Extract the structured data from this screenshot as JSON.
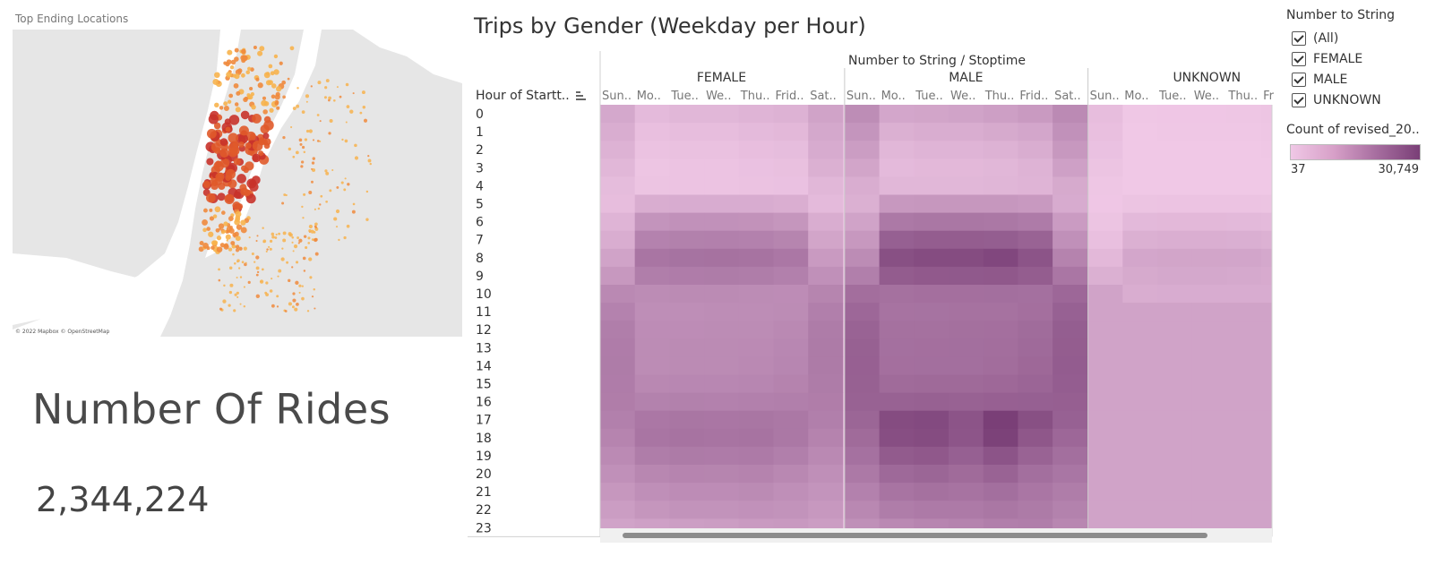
{
  "map": {
    "title": "Top Ending Locations",
    "credit": "© 2022 Mapbox © OpenStreetMap",
    "land_color": "#e9e9e9",
    "water_color": "#ffffff",
    "dot_colors": [
      "#f7b24c",
      "#f08a3c",
      "#e05a2a",
      "#c8322a"
    ]
  },
  "kpi": {
    "label": "Number Of Rides",
    "value": "2,344,224"
  },
  "heatmap": {
    "title": "Trips by Gender (Weekday per Hour)",
    "column_header": "Number to String / Stoptime",
    "row_header": "Hour of Startt..",
    "sort_icon": "sort-descending-icon",
    "groups": [
      "FEMALE",
      "MALE",
      "UNKNOWN"
    ],
    "day_labels": [
      "Sun..",
      "Mo..",
      "Tue..",
      "We..",
      "Thu..",
      "Frid..",
      "Sat.."
    ],
    "unknown_day_labels": [
      "Sun..",
      "Mo..",
      "Tue..",
      "We..",
      "Thu..",
      "Fr"
    ],
    "hours": [
      "0",
      "1",
      "2",
      "3",
      "4",
      "5",
      "6",
      "7",
      "8",
      "9",
      "10",
      "11",
      "12",
      "13",
      "14",
      "15",
      "16",
      "17",
      "18",
      "19",
      "20",
      "21",
      "22",
      "23"
    ],
    "color_low": "#f0c8e6",
    "color_high": "#7a3f77"
  },
  "legend": {
    "filter_title": "Number to String",
    "filter_items": [
      "(All)",
      "FEMALE",
      "MALE",
      "UNKNOWN"
    ],
    "color_title": "Count of revised_20..",
    "min_label": "37",
    "max_label": "30,749"
  },
  "chart_data": {
    "type": "heatmap",
    "title": "Trips by Gender (Weekday per Hour)",
    "xlabel": "Number to String / Stoptime",
    "ylabel": "Hour of Startt..",
    "series_names": [
      "FEMALE",
      "MALE",
      "UNKNOWN"
    ],
    "x": [
      "Sun..",
      "Mo..",
      "Tue..",
      "We..",
      "Thu..",
      "Frid..",
      "Sat.."
    ],
    "y": [
      "0",
      "1",
      "2",
      "3",
      "4",
      "5",
      "6",
      "7",
      "8",
      "9",
      "10",
      "11",
      "12",
      "13",
      "14",
      "15",
      "16",
      "17",
      "18",
      "19",
      "20",
      "21",
      "22",
      "23"
    ],
    "color_range": [
      37,
      30749
    ],
    "values": {
      "FEMALE": [
        [
          1200,
          400,
          500,
          500,
          600,
          700,
          1500
        ],
        [
          900,
          250,
          300,
          300,
          400,
          450,
          1200
        ],
        [
          700,
          180,
          220,
          220,
          280,
          320,
          1000
        ],
        [
          500,
          130,
          160,
          160,
          200,
          240,
          800
        ],
        [
          350,
          150,
          160,
          160,
          180,
          200,
          500
        ],
        [
          300,
          900,
          950,
          950,
          950,
          850,
          400
        ],
        [
          600,
          2800,
          3100,
          3100,
          3000,
          2600,
          900
        ],
        [
          900,
          5200,
          5500,
          5600,
          5400,
          4800,
          1400
        ],
        [
          1500,
          7800,
          8400,
          8500,
          8200,
          7300,
          2200
        ],
        [
          2400,
          6000,
          6300,
          6400,
          6200,
          5600,
          3200
        ],
        [
          4200,
          3800,
          3900,
          3900,
          3800,
          3700,
          4800
        ],
        [
          5200,
          3500,
          3500,
          3600,
          3600,
          3800,
          5800
        ],
        [
          6000,
          3700,
          3700,
          3800,
          3800,
          4100,
          6400
        ],
        [
          6300,
          3800,
          3900,
          3900,
          4000,
          4400,
          6600
        ],
        [
          6400,
          3800,
          3900,
          3900,
          4100,
          4600,
          6600
        ],
        [
          6300,
          4300,
          4400,
          4400,
          4600,
          5000,
          6400
        ],
        [
          6100,
          5300,
          5500,
          5400,
          5600,
          5800,
          6100
        ],
        [
          5600,
          7300,
          7700,
          7500,
          7700,
          7200,
          5800
        ],
        [
          4900,
          7800,
          8200,
          8000,
          8300,
          7200,
          5000
        ],
        [
          4000,
          6200,
          6600,
          6500,
          6700,
          5800,
          4200
        ],
        [
          3200,
          4500,
          4900,
          4800,
          5000,
          4300,
          3400
        ],
        [
          2500,
          3400,
          3700,
          3700,
          3900,
          3400,
          2800
        ],
        [
          2000,
          2600,
          2900,
          2900,
          3100,
          2900,
          2400
        ],
        [
          1500,
          1700,
          1900,
          2000,
          2200,
          2300,
          2000
        ]
      ],
      "MALE": [
        [
          3600,
          1300,
          1400,
          1500,
          1800,
          2200,
          4000
        ],
        [
          2700,
          800,
          900,
          900,
          1100,
          1300,
          3100
        ],
        [
          2000,
          500,
          600,
          600,
          700,
          900,
          2400
        ],
        [
          1400,
          400,
          450,
          450,
          500,
          650,
          1700
        ],
        [
          900,
          500,
          500,
          500,
          550,
          600,
          1100
        ],
        [
          800,
          2400,
          2500,
          2500,
          2500,
          2300,
          1000
        ],
        [
          1500,
          7000,
          7400,
          7400,
          7200,
          6500,
          2100
        ],
        [
          2400,
          14000,
          15000,
          15000,
          14800,
          13000,
          3200
        ],
        [
          3800,
          21000,
          23000,
          23000,
          25500,
          19000,
          5000
        ],
        [
          5800,
          15500,
          16500,
          16800,
          17000,
          15000,
          7500
        ],
        [
          9500,
          8800,
          9200,
          9200,
          9300,
          9000,
          11500
        ],
        [
          11500,
          8200,
          8400,
          8500,
          8600,
          9200,
          13500
        ],
        [
          13000,
          8800,
          8900,
          9100,
          9200,
          10200,
          14800
        ],
        [
          13600,
          9000,
          9200,
          9300,
          9500,
          10600,
          15200
        ],
        [
          13900,
          9200,
          9400,
          9400,
          9800,
          11200,
          15300
        ],
        [
          13700,
          10500,
          10800,
          10800,
          11200,
          12200,
          14900
        ],
        [
          13200,
          13200,
          13600,
          13400,
          13800,
          14000,
          14300
        ],
        [
          12000,
          23000,
          24000,
          19000,
          30749,
          21000,
          13500
        ],
        [
          10500,
          22000,
          23000,
          18500,
          29000,
          17500,
          11500
        ],
        [
          8700,
          16000,
          17000,
          14000,
          19000,
          13000,
          9400
        ],
        [
          6900,
          11000,
          12000,
          10500,
          13000,
          9400,
          7600
        ],
        [
          5400,
          8000,
          8800,
          8300,
          9400,
          7500,
          6200
        ],
        [
          4300,
          6200,
          6800,
          6700,
          7400,
          6600,
          5300
        ],
        [
          3300,
          4100,
          4700,
          5000,
          5800,
          6000,
          4500
        ]
      ],
      "UNKNOWN": [
        [
          300,
          80,
          90,
          90,
          100,
          130,
          350
        ],
        [
          250,
          60,
          70,
          70,
          80,
          100,
          300
        ],
        [
          200,
          50,
          55,
          55,
          60,
          80,
          250
        ],
        [
          150,
          40,
          45,
          45,
          50,
          60,
          200
        ],
        [
          100,
          37,
          40,
          40,
          45,
          50,
          130
        ],
        [
          90,
          150,
          160,
          160,
          160,
          150,
          110
        ],
        [
          150,
          420,
          450,
          450,
          440,
          400,
          200
        ],
        [
          250,
          800,
          850,
          850,
          830,
          750,
          350
        ],
        [
          450,
          1300,
          1400,
          1400,
          1350,
          1200,
          600
        ],
        [
          800,
          1100,
          1200,
          1200,
          1150,
          1050,
          1000
        ],
        [
          1500,
          900,
          950,
          950,
          950,
          950,
          1700
        ]
      ]
    }
  }
}
